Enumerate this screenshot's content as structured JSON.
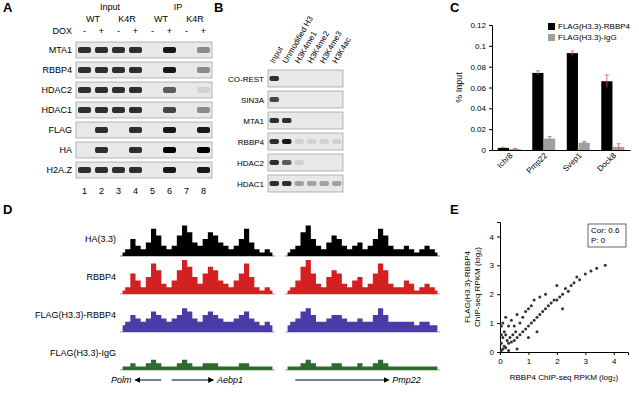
{
  "panel_labels": [
    "A",
    "B",
    "C",
    "D",
    "E"
  ],
  "blot_a": {
    "groups": [
      {
        "label": "Input",
        "genotypes": [
          {
            "label": "WT",
            "lanes": [
              1,
              2
            ]
          },
          {
            "label": "K4R",
            "lanes": [
              3,
              4
            ]
          }
        ]
      },
      {
        "label": "IP",
        "genotypes": [
          {
            "label": "WT",
            "lanes": [
              5,
              6
            ]
          },
          {
            "label": "K4R",
            "lanes": [
              7,
              8
            ]
          }
        ]
      }
    ],
    "dox_label": "DOX",
    "dox": [
      "-",
      "+",
      "-",
      "+",
      "-",
      "+",
      "-",
      "+"
    ],
    "rows": [
      {
        "label": "MTA1",
        "bands": [
          0.8,
          0.8,
          0.8,
          0.8,
          0,
          0.9,
          0,
          0.4
        ]
      },
      {
        "label": "RBBP4",
        "bands": [
          0.8,
          0.8,
          0.8,
          0.8,
          0,
          0.9,
          0,
          0.4
        ]
      },
      {
        "label": "HDAC2",
        "bands": [
          0.8,
          0.8,
          0.8,
          0.8,
          0,
          0.6,
          0,
          0.1
        ]
      },
      {
        "label": "HDAC1",
        "bands": [
          0.8,
          0.8,
          0.8,
          0.8,
          0,
          0.7,
          0,
          0.4
        ]
      },
      {
        "label": "FLAG",
        "bands": [
          0,
          0.8,
          0,
          0.8,
          0,
          0.9,
          0,
          0.9
        ]
      },
      {
        "label": "HA",
        "bands": [
          0,
          0.8,
          0,
          0.8,
          0,
          1,
          0,
          1
        ]
      },
      {
        "label": "H2A.Z",
        "bands": [
          0.8,
          0.8,
          0.8,
          0.8,
          0,
          0.9,
          0,
          0.9
        ]
      }
    ]
  },
  "blot_b": {
    "columns": [
      "Input",
      "Unmodified H3",
      "H3K4me1",
      "H3K4me2",
      "H3K4me3",
      "H3K4ac"
    ],
    "rows": [
      {
        "label": "CO-REST",
        "bands": [
          0.8,
          0,
          0,
          0,
          0,
          0
        ]
      },
      {
        "label": "SIN3A",
        "bands": [
          0.7,
          0,
          0,
          0,
          0,
          0
        ]
      },
      {
        "label": "MTA1",
        "bands": [
          0.8,
          0.8,
          0,
          0,
          0,
          0
        ]
      },
      {
        "label": "RBBP4",
        "bands": [
          0.8,
          0.9,
          0.1,
          0.1,
          0.1,
          0.1
        ]
      },
      {
        "label": "HDAC2",
        "bands": [
          0.8,
          0.6,
          0.1,
          0,
          0,
          0
        ]
      },
      {
        "label": "HDAC1",
        "bands": [
          0.8,
          0.8,
          0.3,
          0.3,
          0.3,
          0.3
        ]
      }
    ]
  },
  "chart_data": [
    {
      "type": "bar",
      "categories": [
        "Ichr8",
        "Pmp22",
        "Svep1",
        "Dock8"
      ],
      "ylabel": "% Input",
      "ylim": [
        0,
        0.12
      ],
      "yticks": [
        0,
        0.02,
        0.04,
        0.06,
        0.08,
        0.1,
        0.12
      ],
      "legend": "top-right",
      "series": [
        {
          "name": "FLAG(H3.3)-RBBP4",
          "color": "#000000",
          "values": [
            0.002,
            0.074,
            0.093,
            0.066
          ],
          "errors": [
            0.0005,
            0.002,
            0.002,
            0.006
          ]
        },
        {
          "name": "FLAG(H3.3)-IgG",
          "color": "#a0a0a0",
          "values": [
            0.001,
            0.011,
            0.007,
            0.003
          ],
          "errors": [
            0.0005,
            0.002,
            0.001,
            0.003
          ]
        }
      ]
    },
    {
      "type": "scatter",
      "xlabel": "RBBP4 ChIP-seq RPKM (log₂)",
      "ylabel": [
        "FLAG(H3.3)-RBBP4",
        "ChIP-seq RPKM (log₂)"
      ],
      "xlim": [
        0,
        4.5
      ],
      "xticks": [
        0,
        1,
        2,
        3,
        4
      ],
      "ylim": [
        0,
        4.5
      ],
      "yticks": [
        0,
        1,
        2,
        3,
        4
      ],
      "color": "#333333",
      "annotations": [
        "Cor: 0.6",
        "P: 0"
      ],
      "x": [
        0.05,
        0.05,
        0.05,
        0.05,
        0.1,
        0.1,
        0.1,
        0.15,
        0.15,
        0.2,
        0.2,
        0.2,
        0.25,
        0.3,
        0.3,
        0.35,
        0.4,
        0.4,
        0.45,
        0.5,
        0.5,
        0.55,
        0.6,
        0.6,
        0.7,
        0.7,
        0.8,
        0.8,
        0.9,
        0.9,
        1.0,
        1.0,
        1.1,
        1.1,
        1.2,
        1.2,
        1.3,
        1.4,
        1.4,
        1.5,
        1.6,
        1.6,
        1.7,
        1.8,
        1.9,
        2.0,
        2.0,
        2.1,
        2.2,
        2.3,
        2.4,
        2.5,
        2.6,
        2.7,
        2.8,
        3.0,
        3.2,
        3.4,
        3.7,
        1.0,
        0.6,
        1.3,
        2.2,
        0.3
      ],
      "values": [
        0.05,
        0.3,
        0.6,
        0.9,
        0.1,
        0.5,
        1.0,
        0.2,
        0.7,
        0.15,
        0.6,
        1.2,
        0.4,
        0.3,
        0.9,
        0.5,
        0.35,
        1.1,
        0.6,
        0.4,
        0.9,
        0.7,
        0.5,
        1.3,
        0.6,
        1.0,
        0.7,
        1.2,
        0.8,
        1.4,
        0.9,
        1.5,
        1.0,
        1.6,
        1.1,
        1.8,
        1.2,
        1.3,
        1.9,
        1.4,
        1.5,
        2.0,
        1.6,
        1.7,
        1.8,
        1.8,
        2.3,
        1.9,
        2.0,
        2.2,
        2.1,
        2.3,
        2.4,
        2.6,
        2.5,
        2.7,
        2.8,
        2.9,
        3.0,
        0.5,
        0.1,
        0.7,
        1.5,
        0.05
      ]
    }
  ],
  "tracks": {
    "ylim": [
      0,
      10
    ],
    "tick_labels": false,
    "series": [
      {
        "name": "HA(3.3)",
        "color": "#000000",
        "regions": [
          [
            1,
            2,
            5,
            3,
            2,
            4,
            8,
            6,
            3,
            2,
            3,
            6,
            9,
            7,
            4,
            3,
            5,
            7,
            6,
            4,
            3,
            2,
            3,
            5,
            8,
            4,
            2,
            1,
            2,
            1
          ],
          [
            1,
            2,
            3,
            7,
            9,
            5,
            3,
            2,
            4,
            6,
            5,
            3,
            2,
            3,
            4,
            2,
            3,
            5,
            8,
            6,
            3,
            2,
            2,
            3,
            2,
            1,
            2,
            3,
            2,
            1
          ]
        ]
      },
      {
        "name": "RBBP4",
        "color": "#d42020",
        "regions": [
          [
            1,
            2,
            6,
            4,
            2,
            5,
            9,
            7,
            3,
            2,
            4,
            7,
            10,
            8,
            5,
            3,
            6,
            8,
            7,
            4,
            3,
            2,
            4,
            6,
            9,
            5,
            2,
            1,
            2,
            1
          ],
          [
            1,
            2,
            4,
            8,
            10,
            6,
            3,
            2,
            5,
            7,
            6,
            3,
            2,
            4,
            5,
            2,
            3,
            6,
            9,
            7,
            3,
            2,
            2,
            4,
            3,
            1,
            2,
            3,
            2,
            1
          ]
        ]
      },
      {
        "name": "FLAG(H3.3)-RBBP4",
        "color": "#4a3ca8",
        "regions": [
          [
            2,
            3,
            5,
            4,
            3,
            4,
            6,
            5,
            4,
            3,
            4,
            5,
            7,
            6,
            4,
            3,
            5,
            6,
            5,
            4,
            3,
            3,
            4,
            5,
            6,
            4,
            3,
            2,
            3,
            2
          ],
          [
            2,
            3,
            4,
            6,
            7,
            5,
            3,
            3,
            4,
            5,
            5,
            4,
            3,
            3,
            4,
            3,
            3,
            5,
            7,
            5,
            3,
            3,
            3,
            3,
            3,
            2,
            3,
            3,
            2,
            2
          ]
        ]
      },
      {
        "name": "FLAG(H3.3)-IgG",
        "color": "#2e6b2e",
        "regions": [
          [
            1,
            1,
            2,
            1,
            1,
            2,
            3,
            2,
            1,
            1,
            1,
            2,
            3,
            2,
            1,
            1,
            2,
            2,
            2,
            1,
            1,
            1,
            1,
            2,
            2,
            1,
            1,
            1,
            1,
            1
          ],
          [
            1,
            1,
            1,
            2,
            3,
            2,
            1,
            1,
            1,
            2,
            2,
            1,
            1,
            1,
            2,
            1,
            1,
            2,
            3,
            2,
            1,
            1,
            1,
            1,
            1,
            1,
            1,
            1,
            1,
            1
          ]
        ]
      }
    ],
    "genes": [
      {
        "label": "Polm",
        "region": 0,
        "start": 3,
        "end": 8,
        "direction": "left"
      },
      {
        "label": "Aebp1",
        "region": 0,
        "start": 10,
        "end": 18,
        "direction": "right"
      },
      {
        "label": "Pmp22",
        "region": 1,
        "start": 2,
        "end": 20,
        "direction": "right"
      }
    ]
  }
}
